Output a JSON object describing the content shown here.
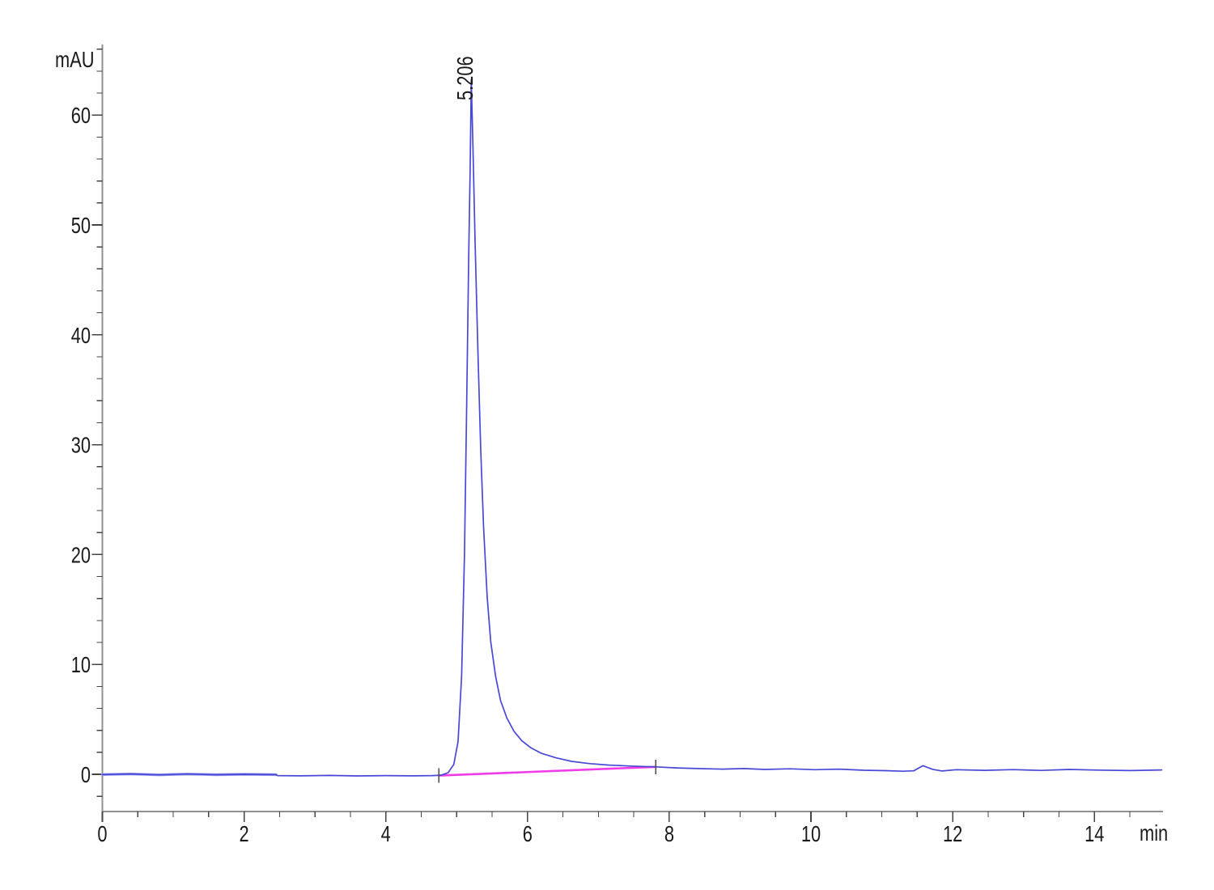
{
  "chart_data": {
    "type": "line",
    "title": "",
    "xlabel": "min",
    "ylabel": "mAU",
    "xlim": [
      0,
      15
    ],
    "ylim": [
      -3.4,
      66.4
    ],
    "grid": false,
    "legend": null,
    "x_major_ticks": [
      0,
      2,
      4,
      6,
      8,
      10,
      12,
      14
    ],
    "x_minor_step": 0.5,
    "y_major_ticks": [
      0,
      10,
      20,
      30,
      40,
      50,
      60
    ],
    "y_minor_step": 2,
    "colors": {
      "signal": "#4848d8",
      "signal_lead": "#9aa0ec",
      "baseline": "#f03ce8",
      "axis": "#909090",
      "tick": "#454545",
      "text": "#1a1a1a",
      "marker": "#4a4a4a"
    },
    "peak_annotations": [
      {
        "label": "5.206",
        "time": 5.206,
        "height_mau": 63.2
      }
    ],
    "integration_markers": [
      {
        "time": 4.75,
        "value": -0.1
      },
      {
        "time": 7.81,
        "value": 0.68
      }
    ],
    "series": [
      {
        "name": "signal-lead",
        "color": "#9aa0ec",
        "width": 3.4,
        "points": [
          [
            0,
            -0.02
          ],
          [
            0.4,
            0.03
          ],
          [
            0.8,
            -0.05
          ],
          [
            1.2,
            0.02
          ],
          [
            1.6,
            -0.04
          ],
          [
            2.0,
            0.0
          ],
          [
            2.45,
            -0.03
          ]
        ]
      },
      {
        "name": "integration-baseline",
        "color": "#f03ce8",
        "width": 2.6,
        "points": [
          [
            4.75,
            -0.12
          ],
          [
            7.81,
            0.68
          ]
        ]
      },
      {
        "name": "signal",
        "color": "#4848d8",
        "width": 1.7,
        "points": [
          [
            0,
            -0.02
          ],
          [
            0.4,
            0.03
          ],
          [
            0.8,
            -0.05
          ],
          [
            1.2,
            0.02
          ],
          [
            1.6,
            -0.04
          ],
          [
            2.0,
            0.0
          ],
          [
            2.45,
            -0.03
          ],
          [
            2.47,
            -0.12
          ],
          [
            2.8,
            -0.14
          ],
          [
            3.2,
            -0.1
          ],
          [
            3.6,
            -0.15
          ],
          [
            4.0,
            -0.12
          ],
          [
            4.4,
            -0.14
          ],
          [
            4.65,
            -0.12
          ],
          [
            4.78,
            -0.08
          ],
          [
            4.88,
            0.15
          ],
          [
            4.96,
            0.9
          ],
          [
            5.02,
            3.0
          ],
          [
            5.07,
            9.0
          ],
          [
            5.11,
            20.0
          ],
          [
            5.14,
            33.0
          ],
          [
            5.17,
            47.0
          ],
          [
            5.19,
            55.0
          ],
          [
            5.206,
            63.2
          ],
          [
            5.23,
            57.0
          ],
          [
            5.26,
            48.5
          ],
          [
            5.3,
            38.5
          ],
          [
            5.34,
            29.5
          ],
          [
            5.38,
            22.5
          ],
          [
            5.43,
            16.2
          ],
          [
            5.48,
            12.1
          ],
          [
            5.55,
            8.9
          ],
          [
            5.62,
            6.7
          ],
          [
            5.71,
            5.1
          ],
          [
            5.81,
            3.9
          ],
          [
            5.92,
            3.05
          ],
          [
            6.05,
            2.4
          ],
          [
            6.2,
            1.9
          ],
          [
            6.4,
            1.5
          ],
          [
            6.62,
            1.18
          ],
          [
            6.88,
            0.97
          ],
          [
            7.15,
            0.84
          ],
          [
            7.45,
            0.75
          ],
          [
            7.81,
            0.68
          ],
          [
            8.1,
            0.58
          ],
          [
            8.4,
            0.52
          ],
          [
            8.75,
            0.47
          ],
          [
            9.05,
            0.52
          ],
          [
            9.35,
            0.44
          ],
          [
            9.7,
            0.5
          ],
          [
            10.05,
            0.42
          ],
          [
            10.4,
            0.47
          ],
          [
            10.75,
            0.37
          ],
          [
            11.05,
            0.33
          ],
          [
            11.3,
            0.28
          ],
          [
            11.45,
            0.32
          ],
          [
            11.58,
            0.78
          ],
          [
            11.72,
            0.45
          ],
          [
            11.85,
            0.3
          ],
          [
            12.05,
            0.42
          ],
          [
            12.45,
            0.36
          ],
          [
            12.85,
            0.43
          ],
          [
            13.25,
            0.35
          ],
          [
            13.65,
            0.44
          ],
          [
            14.05,
            0.38
          ],
          [
            14.5,
            0.34
          ],
          [
            14.95,
            0.4
          ]
        ]
      }
    ]
  }
}
